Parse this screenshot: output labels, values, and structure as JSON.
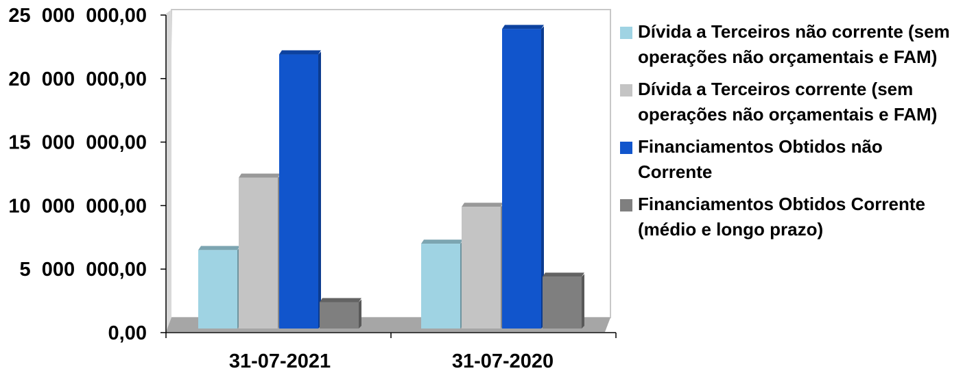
{
  "chart_data": {
    "type": "bar",
    "categories": [
      "31-07-2021",
      "31-07-2020"
    ],
    "series": [
      {
        "name": "Dívida a Terceiros não corrente (sem operações não orçamentais e FAM)",
        "values": [
          6500000,
          7000000
        ],
        "color": "#9fd3e3"
      },
      {
        "name": "Dívida a Terceiros corrente (sem operações não orçamentais e FAM)",
        "values": [
          12200000,
          9900000
        ],
        "color": "#c4c4c4"
      },
      {
        "name": "Financiamentos Obtidos não Corrente",
        "values": [
          21900000,
          23900000
        ],
        "color": "#1155cc"
      },
      {
        "name": "Financiamentos Obtidos  Corrente (médio e longo prazo)",
        "values": [
          2400000,
          4400000
        ],
        "color": "#7f7f7f"
      }
    ],
    "ylim": [
      0,
      25000000
    ],
    "yticks": [
      0,
      5000000,
      10000000,
      15000000,
      20000000,
      25000000
    ],
    "ytick_labels": [
      "0,00",
      "5  000  000,00",
      "10  000  000,00",
      "15  000  000,00",
      "20  000  000,00",
      "25  000  000,00"
    ],
    "legend_position": "right",
    "grid": false
  }
}
